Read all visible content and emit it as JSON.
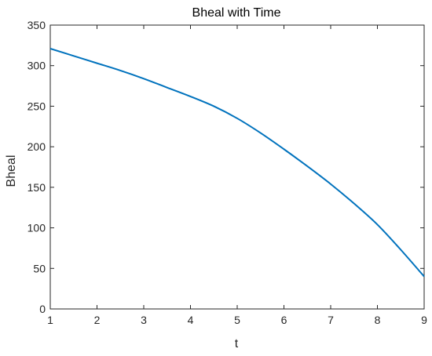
{
  "chart_data": {
    "type": "line",
    "title": "Bheal with Time",
    "xlabel": "t",
    "ylabel": "Bheal",
    "xlim": [
      1,
      9
    ],
    "ylim": [
      0,
      350
    ],
    "xticks": [
      1,
      2,
      3,
      4,
      5,
      6,
      7,
      8,
      9
    ],
    "yticks": [
      0,
      50,
      100,
      150,
      200,
      250,
      300,
      350
    ],
    "grid": false,
    "series": [
      {
        "color": "#0072BD",
        "x": [
          1,
          1.5,
          2,
          2.5,
          3,
          3.5,
          4,
          4.5,
          5,
          5.5,
          6,
          6.5,
          7,
          7.5,
          8,
          8.5,
          9
        ],
        "y": [
          321,
          312,
          303,
          294,
          284,
          273,
          262,
          250,
          235,
          217,
          197,
          176,
          154,
          130,
          104,
          73,
          40
        ]
      }
    ]
  }
}
